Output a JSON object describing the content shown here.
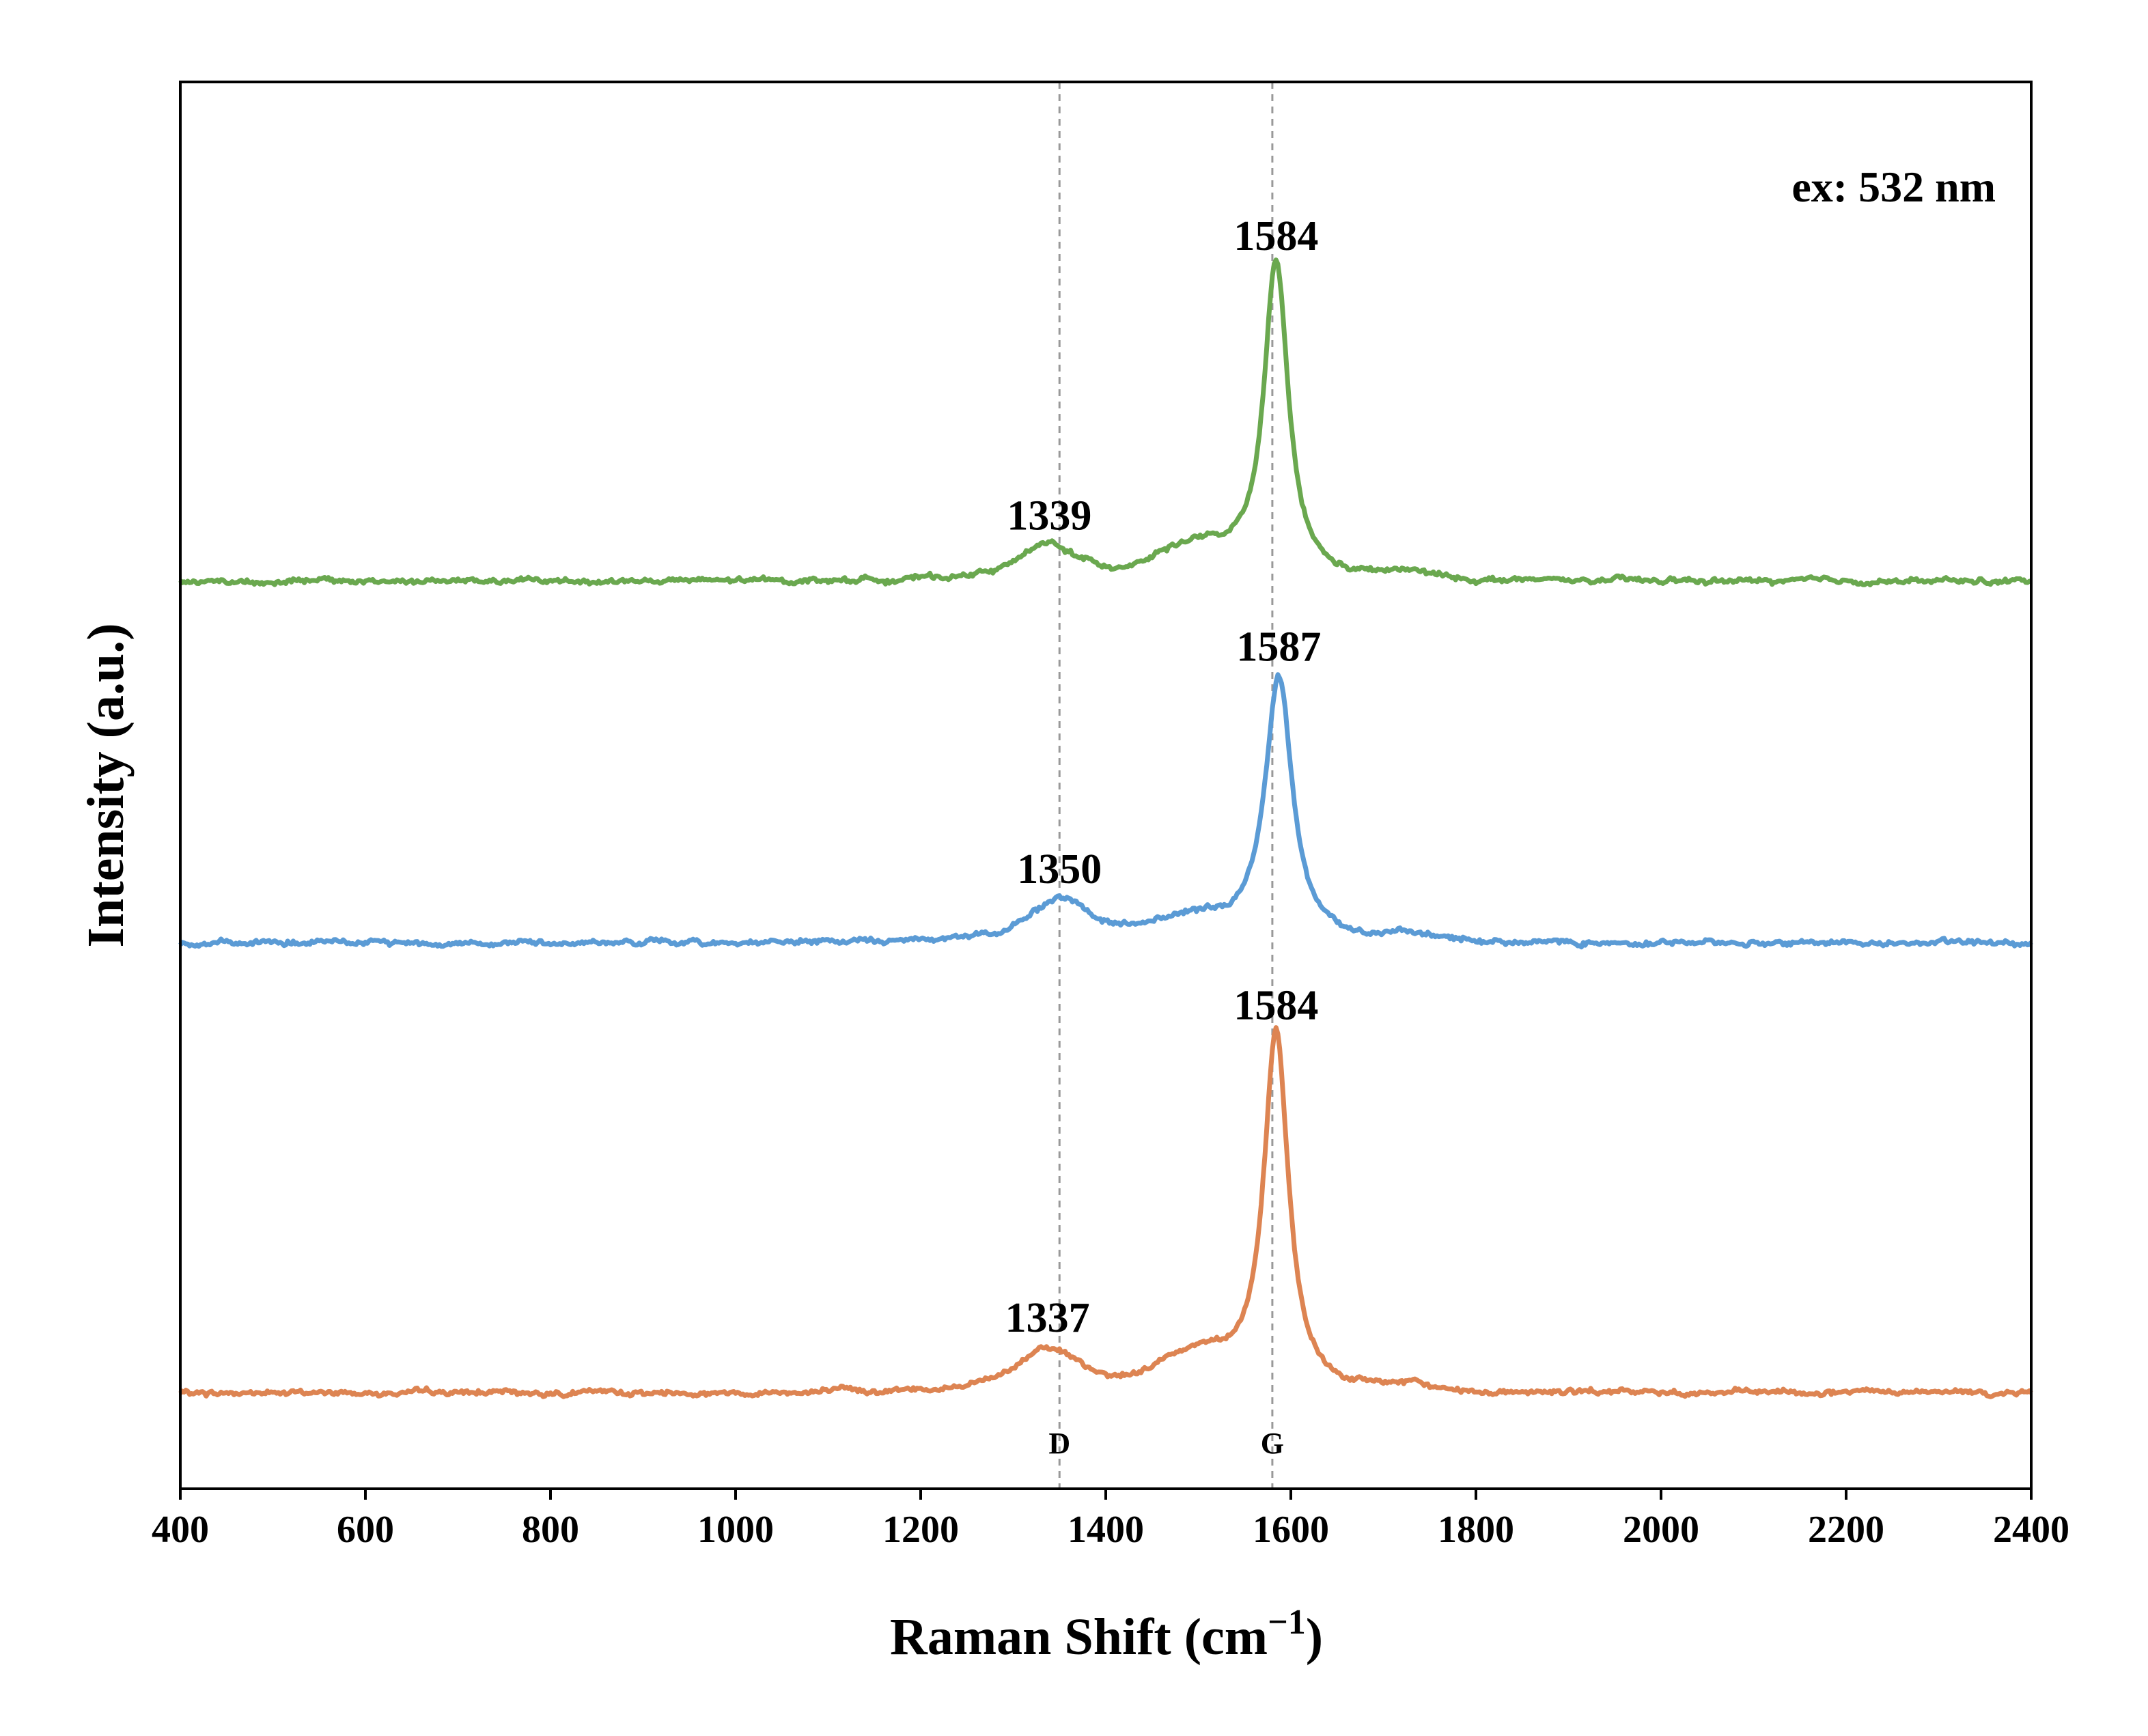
{
  "chart_data": {
    "type": "line",
    "title": "",
    "xlabel": "Raman Shift (cm",
    "xlabel_superscript": "−1",
    "xlabel_close": ")",
    "ylabel": "Intensity (a.u.)",
    "xlim": [
      400,
      2400
    ],
    "ylim": [
      0,
      1
    ],
    "xticks": [
      400,
      600,
      800,
      1000,
      1200,
      1400,
      1600,
      1800,
      2000,
      2200,
      2400
    ],
    "yticks_shown": false,
    "grid": false,
    "legend": "none",
    "annotation": "ex: 532 nm",
    "reference_lines": [
      {
        "x": 1350,
        "label": "D",
        "color": "#999999",
        "style": "dashed"
      },
      {
        "x": 1580,
        "label": "G",
        "color": "#999999",
        "style": "dashed"
      }
    ],
    "series": [
      {
        "color": "#dd8452",
        "baseline": 0.068,
        "peaks": [
          {
            "center": 1337,
            "height": 0.033,
            "width": 40,
            "label": "1337"
          },
          {
            "center": 1584,
            "height": 0.255,
            "width": 16,
            "label": "1584"
          }
        ],
        "shoulders": [
          {
            "center": 1500,
            "height": 0.025,
            "width": 60
          },
          {
            "center": 1720,
            "height": 0.004,
            "width": 40
          }
        ]
      },
      {
        "color": "#5b9bd5",
        "baseline": 0.388,
        "peaks": [
          {
            "center": 1350,
            "height": 0.032,
            "width": 38,
            "label": "1350"
          },
          {
            "center": 1587,
            "height": 0.19,
            "width": 18,
            "label": "1587"
          }
        ],
        "shoulders": [
          {
            "center": 1490,
            "height": 0.014,
            "width": 60
          },
          {
            "center": 1730,
            "height": 0.004,
            "width": 40
          }
        ]
      },
      {
        "color": "#6aa84f",
        "baseline": 0.645,
        "peaks": [
          {
            "center": 1339,
            "height": 0.026,
            "width": 40,
            "label": "1339"
          },
          {
            "center": 1584,
            "height": 0.225,
            "width": 16,
            "label": "1584"
          }
        ],
        "shoulders": [
          {
            "center": 1495,
            "height": 0.022,
            "width": 60
          },
          {
            "center": 1725,
            "height": 0.005,
            "width": 40
          }
        ]
      }
    ]
  }
}
